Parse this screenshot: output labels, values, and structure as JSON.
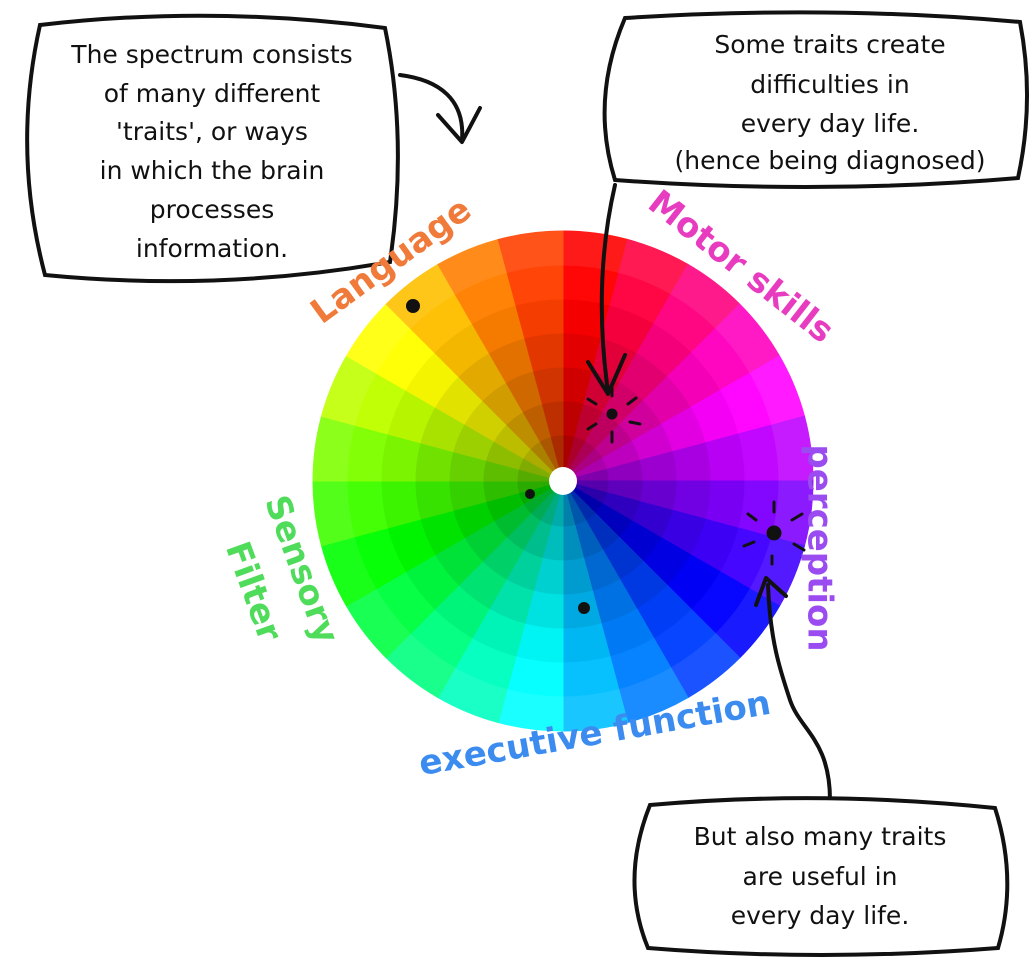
{
  "callouts": [
    {
      "lines": [
        "The spectrum consists",
        "of many different",
        "'traits', or ways",
        "in which the brain",
        "processes",
        "information."
      ]
    },
    {
      "lines": [
        "Some traits create",
        "difficulties in",
        "every day life.",
        "(hence being diagnosed)"
      ]
    },
    {
      "lines": [
        "But also many traits",
        "are useful in",
        "every day life."
      ]
    }
  ],
  "labels": {
    "language": "Language",
    "motor_skills": "Motor skills",
    "perception": "perception",
    "executive_function": "executive function",
    "sensory": "Sensory",
    "filter": "Filter"
  }
}
